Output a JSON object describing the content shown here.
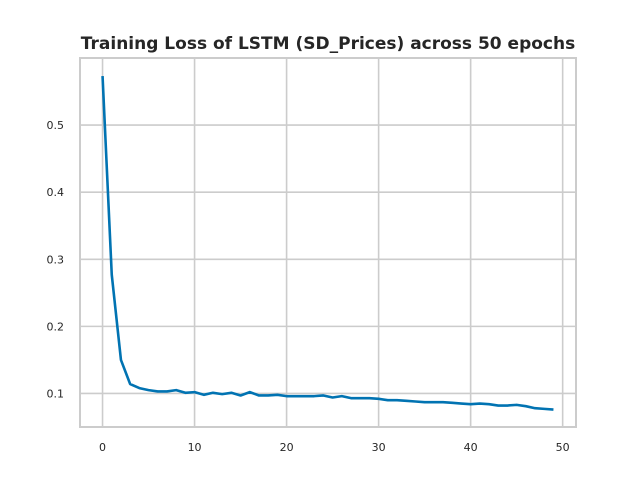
{
  "chart_data": {
    "type": "line",
    "title": "Training Loss of LSTM (SD_Prices) across 50 epochs",
    "xlabel": "",
    "ylabel": "",
    "xlim": [
      -2.45,
      51.45
    ],
    "ylim": [
      0.05,
      0.6
    ],
    "x_ticks": [
      0,
      10,
      20,
      30,
      40,
      50
    ],
    "y_ticks": [
      0.1,
      0.2,
      0.3,
      0.4,
      0.5
    ],
    "x_tick_labels": [
      "0",
      "10",
      "20",
      "30",
      "40",
      "50"
    ],
    "y_tick_labels": [
      "0.1",
      "0.2",
      "0.3",
      "0.4",
      "0.5"
    ],
    "grid": true,
    "series": [
      {
        "color": "#0173b2",
        "x": [
          0,
          1,
          2,
          3,
          4,
          5,
          6,
          7,
          8,
          9,
          10,
          11,
          12,
          13,
          14,
          15,
          16,
          17,
          18,
          19,
          20,
          21,
          22,
          23,
          24,
          25,
          26,
          27,
          28,
          29,
          30,
          31,
          32,
          33,
          34,
          35,
          36,
          37,
          38,
          39,
          40,
          41,
          42,
          43,
          44,
          45,
          46,
          47,
          48,
          49
        ],
        "y": [
          0.573,
          0.277,
          0.15,
          0.114,
          0.108,
          0.105,
          0.103,
          0.103,
          0.105,
          0.101,
          0.102,
          0.098,
          0.101,
          0.099,
          0.101,
          0.097,
          0.102,
          0.097,
          0.097,
          0.098,
          0.096,
          0.096,
          0.096,
          0.096,
          0.097,
          0.094,
          0.096,
          0.093,
          0.093,
          0.093,
          0.092,
          0.09,
          0.09,
          0.089,
          0.088,
          0.087,
          0.087,
          0.087,
          0.086,
          0.085,
          0.084,
          0.085,
          0.084,
          0.082,
          0.082,
          0.083,
          0.081,
          0.078,
          0.077,
          0.076
        ]
      }
    ]
  }
}
